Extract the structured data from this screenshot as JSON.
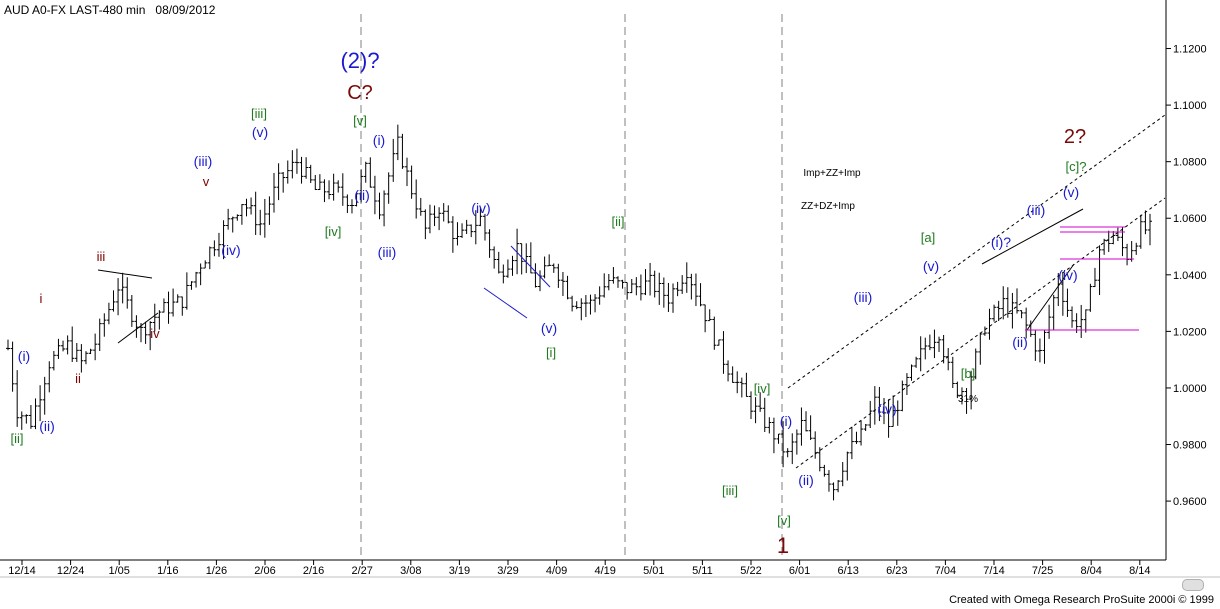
{
  "header": {
    "symbol": "AUD A0-FX LAST-480 min",
    "date": "08/09/2012"
  },
  "footer": {
    "credit": "Created with Omega Research ProSuite 2000i © 1999"
  },
  "colors": {
    "blue": "#1a1ad0",
    "green": "#1f7a1f",
    "maroon": "#800000",
    "dark_red": "#7a0a0a",
    "magenta": "#d000d0",
    "bars": "#000000",
    "grid_dash": "#808080"
  },
  "chart_data": {
    "type": "bar",
    "subtype": "ohlc",
    "timeframe": "480 min",
    "ylim": [
      0.942,
      1.1315
    ],
    "y_ticks": [
      "1.1200",
      "1.1000",
      "1.0800",
      "1.0600",
      "1.0400",
      "1.0200",
      "1.0000",
      "0.9800",
      "0.9600"
    ],
    "x_ticks": [
      "12/14",
      "12/24",
      "1/05",
      "1/16",
      "1/26",
      "2/06",
      "2/16",
      "2/27",
      "3/08",
      "3/19",
      "3/29",
      "4/09",
      "4/19",
      "5/01",
      "5/11",
      "5/22",
      "6/01",
      "6/13",
      "6/23",
      "7/04",
      "7/14",
      "7/25",
      "8/04",
      "8/14"
    ],
    "price_path": [
      {
        "i": 0,
        "p": 1.014
      },
      {
        "i": 2,
        "p": 0.992
      },
      {
        "i": 5,
        "p": 0.988
      },
      {
        "i": 9,
        "p": 1.009
      },
      {
        "i": 13,
        "p": 1.015
      },
      {
        "i": 16,
        "p": 1.009
      },
      {
        "i": 19,
        "p": 1.016
      },
      {
        "i": 24,
        "p": 1.036
      },
      {
        "i": 29,
        "p": 1.02
      },
      {
        "i": 33,
        "p": 1.027
      },
      {
        "i": 38,
        "p": 1.031
      },
      {
        "i": 42,
        "p": 1.044
      },
      {
        "i": 47,
        "p": 1.056
      },
      {
        "i": 51,
        "p": 1.066
      },
      {
        "i": 55,
        "p": 1.058
      },
      {
        "i": 59,
        "p": 1.073
      },
      {
        "i": 63,
        "p": 1.08
      },
      {
        "i": 67,
        "p": 1.07
      },
      {
        "i": 71,
        "p": 1.07
      },
      {
        "i": 75,
        "p": 1.066
      },
      {
        "i": 78,
        "p": 1.077
      },
      {
        "i": 81,
        "p": 1.064
      },
      {
        "i": 85,
        "p": 1.086
      },
      {
        "i": 88,
        "p": 1.07
      },
      {
        "i": 91,
        "p": 1.056
      },
      {
        "i": 94,
        "p": 1.064
      },
      {
        "i": 98,
        "p": 1.052
      },
      {
        "i": 103,
        "p": 1.06
      },
      {
        "i": 107,
        "p": 1.04
      },
      {
        "i": 111,
        "p": 1.05
      },
      {
        "i": 115,
        "p": 1.037
      },
      {
        "i": 119,
        "p": 1.044
      },
      {
        "i": 123,
        "p": 1.031
      },
      {
        "i": 127,
        "p": 1.03
      },
      {
        "i": 131,
        "p": 1.038
      },
      {
        "i": 135,
        "p": 1.035
      },
      {
        "i": 140,
        "p": 1.037
      },
      {
        "i": 144,
        "p": 1.032
      },
      {
        "i": 148,
        "p": 1.042
      },
      {
        "i": 151,
        "p": 1.03
      },
      {
        "i": 156,
        "p": 1.01
      },
      {
        "i": 161,
        "p": 0.996
      },
      {
        "i": 166,
        "p": 0.986
      },
      {
        "i": 170,
        "p": 0.976
      },
      {
        "i": 173,
        "p": 0.987
      },
      {
        "i": 177,
        "p": 0.974
      },
      {
        "i": 180,
        "p": 0.965
      },
      {
        "i": 183,
        "p": 0.977
      },
      {
        "i": 186,
        "p": 0.983
      },
      {
        "i": 189,
        "p": 0.995
      },
      {
        "i": 192,
        "p": 0.987
      },
      {
        "i": 196,
        "p": 1.002
      },
      {
        "i": 200,
        "p": 1.015
      },
      {
        "i": 203,
        "p": 1.02
      },
      {
        "i": 206,
        "p": 1.0
      },
      {
        "i": 209,
        "p": 0.999
      },
      {
        "i": 213,
        "p": 1.022
      },
      {
        "i": 217,
        "p": 1.03
      },
      {
        "i": 221,
        "p": 1.025
      },
      {
        "i": 225,
        "p": 1.012
      },
      {
        "i": 229,
        "p": 1.038
      },
      {
        "i": 232,
        "p": 1.023
      },
      {
        "i": 235,
        "p": 1.025
      },
      {
        "i": 238,
        "p": 1.049
      },
      {
        "i": 241,
        "p": 1.054
      },
      {
        "i": 244,
        "p": 1.047
      },
      {
        "i": 247,
        "p": 1.056
      },
      {
        "i": 249,
        "p": 1.056
      }
    ],
    "wave_labels": [
      {
        "text": "(2)?",
        "color": "blue",
        "role": "wave-label"
      },
      {
        "text": "C?",
        "color": "dark_red",
        "role": "wave-label"
      },
      {
        "text": "1",
        "color": "dark_red",
        "role": "wave-label"
      },
      {
        "text": "2?",
        "color": "dark_red",
        "role": "wave-label"
      },
      {
        "text": "[ii]",
        "color": "green",
        "role": "wave-label"
      },
      {
        "text": "(ii)",
        "color": "blue",
        "role": "wave-label"
      },
      {
        "text": "(i)",
        "color": "blue",
        "role": "wave-label"
      },
      {
        "text": "i",
        "color": "maroon",
        "role": "wave-label"
      },
      {
        "text": "ii",
        "color": "maroon",
        "role": "wave-label"
      },
      {
        "text": "iii",
        "color": "maroon",
        "role": "wave-label"
      },
      {
        "text": "iv",
        "color": "maroon",
        "role": "wave-label"
      },
      {
        "text": "v",
        "color": "maroon",
        "role": "wave-label"
      },
      {
        "text": "(iii)",
        "color": "blue",
        "role": "wave-label"
      },
      {
        "text": "(iv)",
        "color": "blue",
        "role": "wave-label"
      },
      {
        "text": "(v)",
        "color": "blue",
        "role": "wave-label"
      },
      {
        "text": "[iii]",
        "color": "green",
        "role": "wave-label"
      },
      {
        "text": "[iv]",
        "color": "green",
        "role": "wave-label"
      },
      {
        "text": "[v]",
        "color": "green",
        "role": "wave-label"
      },
      {
        "text": "(i)",
        "color": "blue",
        "role": "wave-label"
      },
      {
        "text": "(ii)",
        "color": "blue",
        "role": "wave-label"
      },
      {
        "text": "(iii)",
        "color": "blue",
        "role": "wave-label"
      },
      {
        "text": "(iv)",
        "color": "blue",
        "role": "wave-label"
      },
      {
        "text": "(v)",
        "color": "blue",
        "role": "wave-label"
      },
      {
        "text": "[i]",
        "color": "green",
        "role": "wave-label"
      },
      {
        "text": "[ii]",
        "color": "green",
        "role": "wave-label"
      },
      {
        "text": "[iii]",
        "color": "green",
        "role": "wave-label"
      },
      {
        "text": "[iv]",
        "color": "green",
        "role": "wave-label"
      },
      {
        "text": "[v]",
        "color": "green",
        "role": "wave-label"
      },
      {
        "text": "(i)",
        "color": "blue",
        "role": "wave-label"
      },
      {
        "text": "(ii)",
        "color": "blue",
        "role": "wave-label"
      },
      {
        "text": "(iii)",
        "color": "blue",
        "role": "wave-label"
      },
      {
        "text": "(iv)",
        "color": "blue",
        "role": "wave-label"
      },
      {
        "text": "(v)",
        "color": "blue",
        "role": "wave-label"
      },
      {
        "text": "[a]",
        "color": "green",
        "role": "wave-label"
      },
      {
        "text": "[b]",
        "color": "green",
        "role": "wave-label"
      },
      {
        "text": "[c]?",
        "color": "green",
        "role": "wave-label"
      },
      {
        "text": "(i)?",
        "color": "blue",
        "role": "wave-label"
      },
      {
        "text": "(ii)",
        "color": "blue",
        "role": "wave-label"
      },
      {
        "text": "(iii)",
        "color": "blue",
        "role": "wave-label"
      },
      {
        "text": "(iv)",
        "color": "blue",
        "role": "wave-label"
      },
      {
        "text": "(v)",
        "color": "blue",
        "role": "wave-label"
      },
      {
        "text": "31%",
        "color": "bars",
        "role": "annotation"
      },
      {
        "text": "Imp+ZZ+Imp",
        "color": "bars",
        "role": "annotation"
      },
      {
        "text": "ZZ+DZ+Imp",
        "color": "bars",
        "role": "annotation"
      }
    ]
  }
}
